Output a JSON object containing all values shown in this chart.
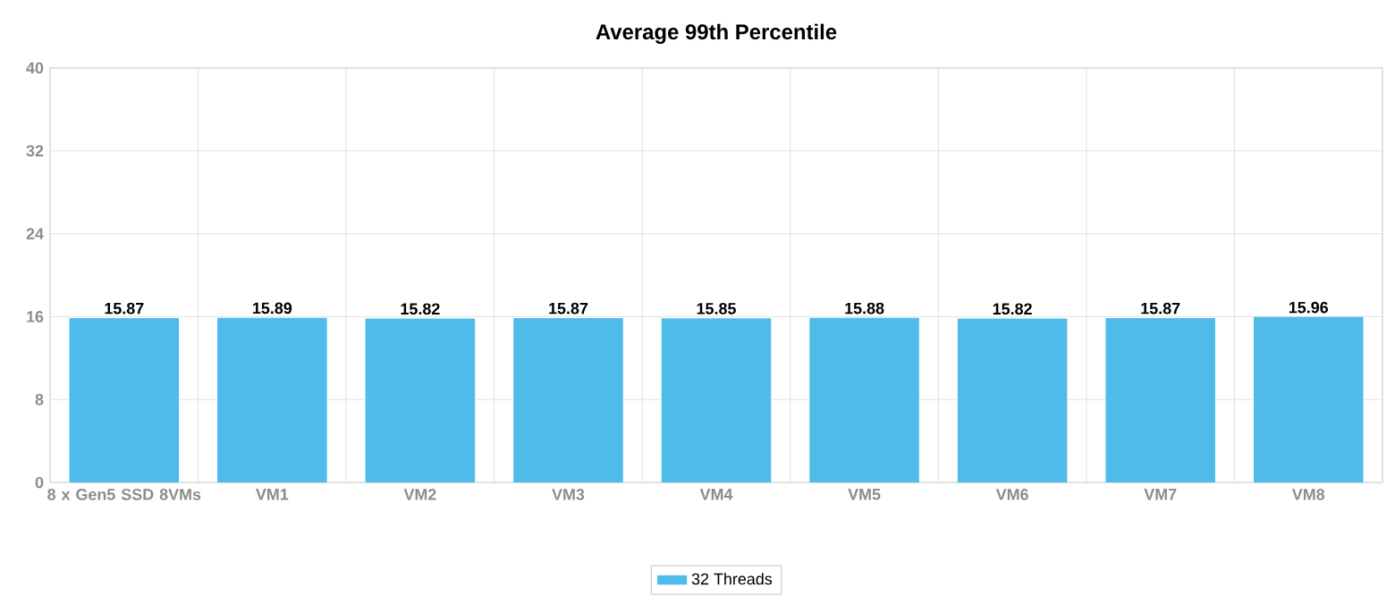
{
  "chart_data": {
    "type": "bar",
    "title": "Average 99th Percentile",
    "categories": [
      "8 x Gen5 SSD 8VMs",
      "VM1",
      "VM2",
      "VM3",
      "VM4",
      "VM5",
      "VM6",
      "VM7",
      "VM8"
    ],
    "series": [
      {
        "name": "32 Threads",
        "color": "#4fbbea",
        "values": [
          15.87,
          15.89,
          15.82,
          15.87,
          15.85,
          15.88,
          15.82,
          15.87,
          15.96
        ]
      }
    ],
    "ylim": [
      0,
      40
    ],
    "yticks": [
      0,
      8,
      16,
      24,
      32,
      40
    ],
    "grid": true,
    "data_labels": true,
    "legend": "bottom"
  }
}
